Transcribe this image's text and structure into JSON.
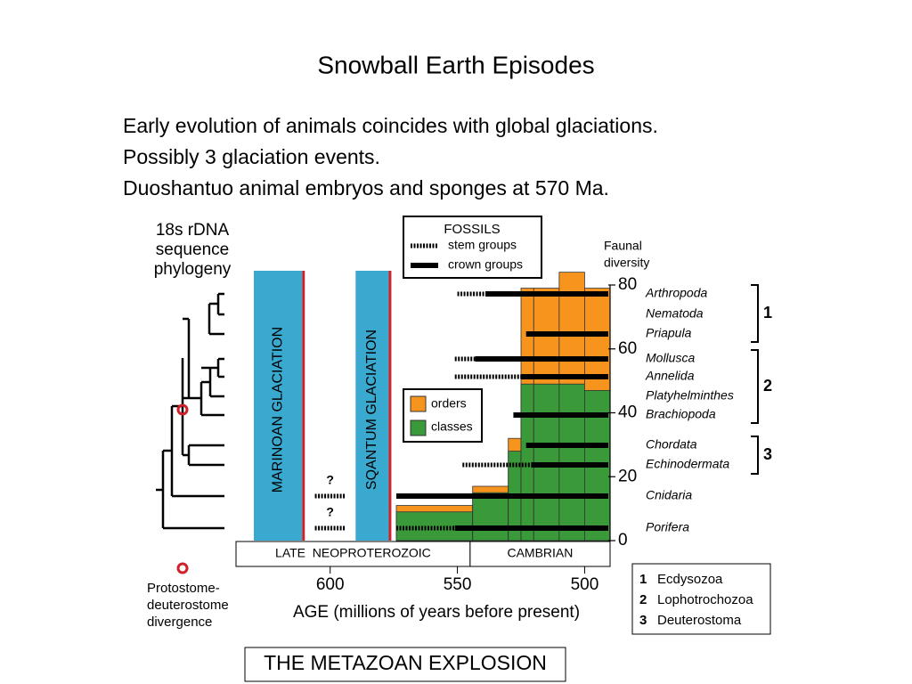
{
  "title": "Snowball Earth Episodes",
  "bullets": [
    "Early evolution of animals coincides with global glaciations.",
    "Possibly 3 glaciation events.",
    "Duoshantuo animal embryos and sponges at 570 Ma."
  ],
  "figure": {
    "phylogeny_label": [
      "18s rDNA",
      "sequence",
      "phylogeny"
    ],
    "divergence_label": [
      "Protostome-",
      "deuterostome",
      "divergence"
    ],
    "glaciations": [
      {
        "name": "MARINOAN GLACIATION",
        "start": 630,
        "end": 611
      },
      {
        "name": "SQANTUM GLACIATION",
        "start": 590,
        "end": 577
      }
    ],
    "fossils_legend": {
      "title": "FOSSILS",
      "stem": "stem groups",
      "crown": "crown groups"
    },
    "diversity_legend": {
      "orders": "orders",
      "classes": "classes",
      "orders_color": "#f7941d",
      "classes_color": "#3a9a3a"
    },
    "diversity_label": [
      "Faunal",
      "diversity"
    ],
    "xlim": [
      637,
      490
    ],
    "xticks": [
      600,
      550,
      500
    ],
    "xlabel": "AGE (millions of years before present)",
    "ylim": [
      0,
      80
    ],
    "yticks": [
      0,
      20,
      40,
      60,
      80
    ],
    "eras": [
      {
        "name": "LATE  NEOPROTEROZOIC",
        "start": 637,
        "end": 545
      },
      {
        "name": "CAMBRIAN",
        "start": 545,
        "end": 490
      }
    ],
    "diversity": {
      "bins": [
        574,
        544,
        530,
        525,
        520,
        510,
        500,
        490
      ],
      "orders": [
        11,
        17,
        32,
        79,
        79,
        84,
        79
      ],
      "classes": [
        9,
        15,
        28,
        49,
        49,
        49,
        47
      ]
    },
    "taxa": [
      {
        "name": "Arthropoda",
        "stem": [
          550,
          539
        ],
        "crown": 539
      },
      {
        "name": "Nematoda"
      },
      {
        "name": "Priapula",
        "crown": 523
      },
      {
        "name": "Mollusca",
        "stem": [
          551,
          543
        ],
        "crown": 543
      },
      {
        "name": "Annelida",
        "stem": [
          551,
          525
        ],
        "crown": 525
      },
      {
        "name": "Platyhelminthes"
      },
      {
        "name": "Brachiopoda",
        "crown": 528
      },
      {
        "name": "Chordata",
        "crown": 523
      },
      {
        "name": "Echinodermata",
        "stem": [
          548,
          521
        ],
        "crown": 521
      },
      {
        "name": "Cnidaria",
        "crown": 574
      },
      {
        "name": "Porifera",
        "stem": [
          574,
          551
        ],
        "crown": 551
      }
    ],
    "uncertain": [
      {
        "label": "?",
        "range": [
          606,
          594
        ]
      },
      {
        "label": "?",
        "range": [
          606,
          594
        ]
      }
    ],
    "clades": [
      {
        "number": "1",
        "name": "Ecdysozoa"
      },
      {
        "number": "2",
        "name": "Lophotrochozoa"
      },
      {
        "number": "3",
        "name": "Deuterostoma"
      }
    ],
    "caption": "THE METAZOAN EXPLOSION"
  }
}
